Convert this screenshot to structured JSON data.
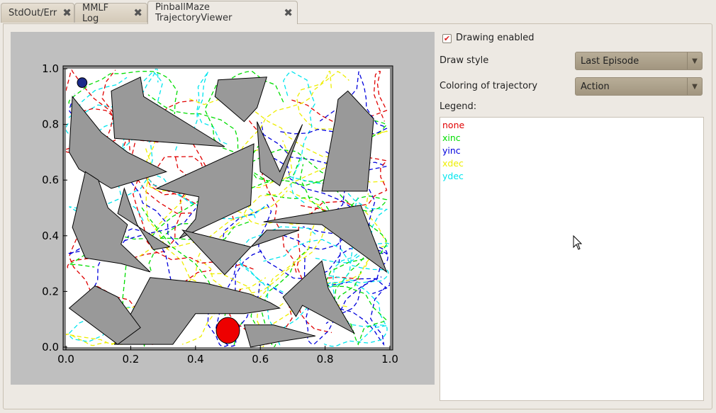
{
  "tabs": [
    {
      "label": "StdOut/Err",
      "active": false
    },
    {
      "label": "MMLF Log",
      "active": false
    },
    {
      "label": "PinballMaze TrajectoryViewer",
      "active": true
    }
  ],
  "controls": {
    "drawing_enabled_label": "Drawing enabled",
    "drawing_enabled": true,
    "draw_style_label": "Draw style",
    "draw_style_value": "Last Episode",
    "coloring_label": "Coloring of trajectory",
    "coloring_value": "Action",
    "legend_label": "Legend:"
  },
  "legend": [
    {
      "label": "none",
      "color": "#e00000"
    },
    {
      "label": "xinc",
      "color": "#00dd00"
    },
    {
      "label": "yinc",
      "color": "#0000dd"
    },
    {
      "label": "xdec",
      "color": "#eeee00"
    },
    {
      "label": "ydec",
      "color": "#00e5ee"
    }
  ],
  "plot": {
    "xlim": [
      0.0,
      1.0
    ],
    "ylim": [
      0.0,
      1.0
    ],
    "x_ticks": [
      "0.0",
      "0.2",
      "0.4",
      "0.6",
      "0.8",
      "1.0"
    ],
    "y_ticks": [
      "0.0",
      "0.2",
      "0.4",
      "0.6",
      "0.8",
      "1.0"
    ],
    "obstacle_color": "#999999",
    "ball": {
      "x": 0.05,
      "y": 0.95,
      "r": 0.015,
      "color": "#1a2a8a"
    },
    "target": {
      "x": 0.5,
      "y": 0.06,
      "r": 0.04,
      "color": "#ee0000"
    },
    "obstacles": [
      [
        [
          0.14,
          0.92
        ],
        [
          0.23,
          0.97
        ],
        [
          0.24,
          0.9
        ],
        [
          0.49,
          0.72
        ],
        [
          0.15,
          0.75
        ]
      ],
      [
        [
          0.02,
          0.9
        ],
        [
          0.01,
          0.7
        ],
        [
          0.04,
          0.64
        ],
        [
          0.14,
          0.57
        ],
        [
          0.31,
          0.63
        ],
        [
          0.19,
          0.7
        ],
        [
          0.11,
          0.77
        ]
      ],
      [
        [
          0.47,
          0.96
        ],
        [
          0.62,
          0.97
        ],
        [
          0.59,
          0.86
        ],
        [
          0.55,
          0.81
        ],
        [
          0.46,
          0.9
        ]
      ],
      [
        [
          0.59,
          0.81
        ],
        [
          0.6,
          0.63
        ],
        [
          0.66,
          0.58
        ],
        [
          0.73,
          0.8
        ],
        [
          0.66,
          0.63
        ]
      ],
      [
        [
          0.87,
          0.92
        ],
        [
          0.95,
          0.82
        ],
        [
          0.93,
          0.56
        ],
        [
          0.79,
          0.56
        ],
        [
          0.83,
          0.81
        ],
        [
          0.84,
          0.89
        ]
      ],
      [
        [
          0.28,
          0.57
        ],
        [
          0.58,
          0.73
        ],
        [
          0.57,
          0.51
        ],
        [
          0.35,
          0.39
        ],
        [
          0.4,
          0.46
        ],
        [
          0.41,
          0.54
        ]
      ],
      [
        [
          0.06,
          0.63
        ],
        [
          0.1,
          0.6
        ],
        [
          0.13,
          0.5
        ],
        [
          0.19,
          0.44
        ],
        [
          0.17,
          0.37
        ],
        [
          0.26,
          0.27
        ],
        [
          0.17,
          0.3
        ],
        [
          0.06,
          0.32
        ],
        [
          0.02,
          0.43
        ]
      ],
      [
        [
          0.18,
          0.57
        ],
        [
          0.16,
          0.48
        ],
        [
          0.32,
          0.36
        ],
        [
          0.27,
          0.35
        ],
        [
          0.22,
          0.44
        ]
      ],
      [
        [
          0.36,
          0.42
        ],
        [
          0.49,
          0.26
        ],
        [
          0.62,
          0.42
        ],
        [
          0.72,
          0.42
        ],
        [
          0.57,
          0.36
        ]
      ],
      [
        [
          0.61,
          0.45
        ],
        [
          0.91,
          0.51
        ],
        [
          0.99,
          0.27
        ],
        [
          0.79,
          0.44
        ]
      ],
      [
        [
          0.79,
          0.31
        ],
        [
          0.67,
          0.18
        ],
        [
          0.71,
          0.11
        ],
        [
          0.73,
          0.15
        ],
        [
          0.89,
          0.05
        ],
        [
          0.81,
          0.21
        ]
      ],
      [
        [
          0.26,
          0.25
        ],
        [
          0.43,
          0.23
        ],
        [
          0.57,
          0.19
        ],
        [
          0.63,
          0.16
        ],
        [
          0.66,
          0.14
        ],
        [
          0.55,
          0.12
        ],
        [
          0.4,
          0.12
        ],
        [
          0.33,
          0.01
        ],
        [
          0.15,
          0.01
        ]
      ],
      [
        [
          0.01,
          0.14
        ],
        [
          0.09,
          0.22
        ],
        [
          0.16,
          0.18
        ],
        [
          0.23,
          0.07
        ],
        [
          0.16,
          0.01
        ]
      ],
      [
        [
          0.55,
          0.08
        ],
        [
          0.58,
          0.08
        ],
        [
          0.64,
          0.08
        ],
        [
          0.77,
          0.04
        ],
        [
          0.66,
          0.02
        ],
        [
          0.57,
          0.0
        ]
      ]
    ]
  }
}
